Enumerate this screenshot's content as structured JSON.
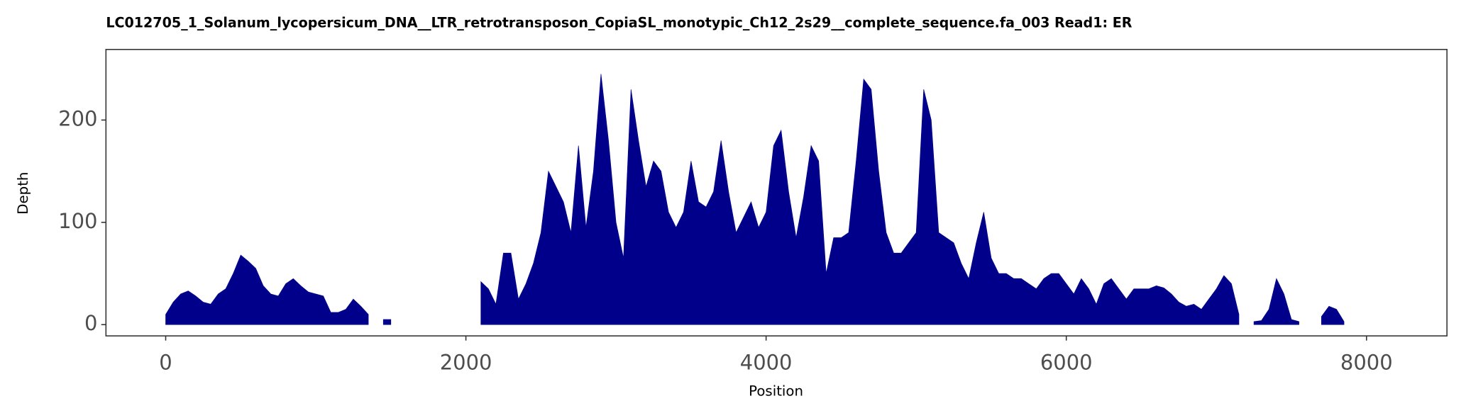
{
  "chart_data": {
    "type": "area",
    "title": "LC012705_1_Solanum_lycopersicum_DNA__LTR_retrotransposon_CopiaSL_monotypic_Ch12_2s29__complete_sequence.fa_003   Read1: ER",
    "x_label": "Position",
    "y_label": "Depth",
    "color": "#00008b",
    "xlim": [
      -398,
      8536
    ],
    "ylim": [
      -11,
      269
    ],
    "xticks": [
      0,
      2000,
      4000,
      6000,
      8000
    ],
    "yticks": [
      0,
      100,
      200
    ],
    "grid": false,
    "x": [
      0,
      50,
      100,
      150,
      200,
      250,
      300,
      350,
      400,
      450,
      500,
      550,
      600,
      650,
      700,
      750,
      800,
      850,
      900,
      950,
      1000,
      1050,
      1100,
      1150,
      1200,
      1250,
      1300,
      1350,
      1400,
      1450,
      1500,
      1550,
      2100,
      2150,
      2200,
      2250,
      2300,
      2350,
      2400,
      2450,
      2500,
      2550,
      2600,
      2650,
      2700,
      2750,
      2800,
      2850,
      2900,
      2950,
      3000,
      3050,
      3100,
      3150,
      3200,
      3250,
      3300,
      3350,
      3400,
      3450,
      3500,
      3550,
      3600,
      3650,
      3700,
      3750,
      3800,
      3850,
      3900,
      3950,
      4000,
      4050,
      4100,
      4150,
      4200,
      4250,
      4300,
      4350,
      4400,
      4450,
      4500,
      4550,
      4600,
      4650,
      4700,
      4750,
      4800,
      4850,
      4900,
      4950,
      5000,
      5050,
      5100,
      5150,
      5200,
      5250,
      5300,
      5350,
      5400,
      5450,
      5500,
      5550,
      5600,
      5650,
      5700,
      5750,
      5800,
      5850,
      5900,
      5950,
      6000,
      6050,
      6100,
      6150,
      6200,
      6250,
      6300,
      6350,
      6400,
      6450,
      6500,
      6550,
      6600,
      6650,
      6700,
      6750,
      6800,
      6850,
      6900,
      6950,
      7000,
      7050,
      7100,
      7150,
      7200,
      7250,
      7300,
      7350,
      7400,
      7450,
      7500,
      7550,
      7600,
      7700,
      7750,
      7800,
      7850
    ],
    "values": [
      10,
      22,
      30,
      33,
      28,
      22,
      20,
      30,
      35,
      50,
      68,
      62,
      55,
      38,
      30,
      28,
      40,
      45,
      38,
      32,
      30,
      28,
      12,
      12,
      15,
      25,
      18,
      10,
      null,
      5,
      5,
      null,
      42,
      35,
      20,
      70,
      70,
      25,
      40,
      60,
      90,
      150,
      135,
      120,
      90,
      175,
      95,
      150,
      245,
      180,
      100,
      65,
      230,
      180,
      135,
      160,
      150,
      110,
      95,
      110,
      160,
      120,
      115,
      130,
      180,
      130,
      90,
      105,
      120,
      95,
      110,
      175,
      190,
      130,
      85,
      125,
      175,
      160,
      50,
      85,
      85,
      90,
      160,
      240,
      230,
      150,
      90,
      70,
      70,
      80,
      90,
      230,
      200,
      90,
      85,
      80,
      60,
      45,
      80,
      110,
      65,
      50,
      50,
      45,
      45,
      40,
      35,
      45,
      50,
      50,
      40,
      30,
      45,
      35,
      20,
      40,
      45,
      35,
      25,
      35,
      35,
      35,
      38,
      36,
      30,
      22,
      18,
      20,
      15,
      25,
      35,
      48,
      40,
      10,
      null,
      3,
      4,
      15,
      45,
      30,
      5,
      3,
      null,
      8,
      18,
      15,
      3
    ]
  }
}
